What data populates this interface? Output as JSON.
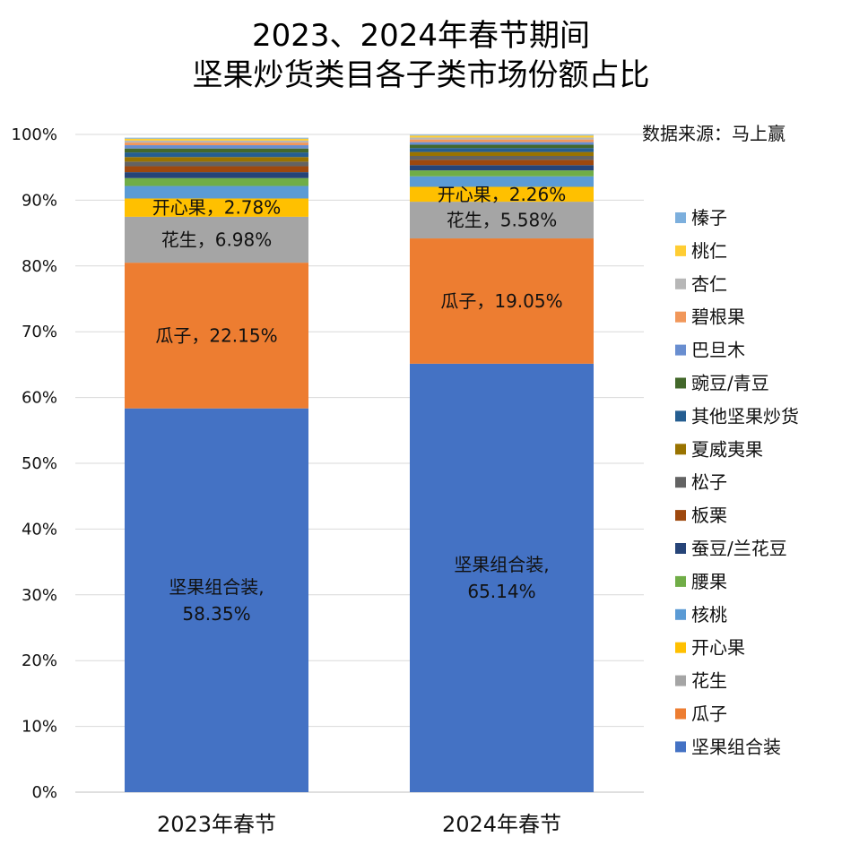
{
  "title_line1": "2023、2024年春节期间",
  "title_line2": "坚果炒货类目各子类市场份额占比",
  "source": "数据来源：马上赢",
  "chart_data": {
    "type": "bar",
    "stacked": true,
    "percent_stacked": true,
    "title": "2023、2024年春节期间 坚果炒货类目各子类市场份额占比",
    "categories": [
      "2023年春节",
      "2024年春节"
    ],
    "ylim": [
      0,
      100
    ],
    "yticks": [
      "0%",
      "10%",
      "20%",
      "30%",
      "40%",
      "50%",
      "60%",
      "70%",
      "80%",
      "90%",
      "100%"
    ],
    "grid": true,
    "legend_position": "right",
    "series": [
      {
        "name": "坚果组合装",
        "color": "#4472C4",
        "values": [
          58.35,
          65.14
        ],
        "labels": [
          "坚果组合装,\n58.35%",
          "坚果组合装,\n65.14%"
        ]
      },
      {
        "name": "瓜子",
        "color": "#ED7D31",
        "values": [
          22.15,
          19.05
        ],
        "labels": [
          "瓜子，22.15%",
          "瓜子，19.05%"
        ]
      },
      {
        "name": "花生",
        "color": "#A5A5A5",
        "values": [
          6.98,
          5.58
        ],
        "labels": [
          "花生，6.98%",
          "花生，5.58%"
        ]
      },
      {
        "name": "开心果",
        "color": "#FFC000",
        "values": [
          2.78,
          2.26
        ],
        "labels": [
          "开心果，2.78%",
          "开心果，2.26%"
        ]
      },
      {
        "name": "核桃",
        "color": "#5B9BD5",
        "values": [
          1.9,
          1.6
        ],
        "labels": [
          "",
          ""
        ]
      },
      {
        "name": "腰果",
        "color": "#70AD47",
        "values": [
          1.2,
          0.9
        ],
        "labels": [
          "",
          ""
        ]
      },
      {
        "name": "蚕豆/兰花豆",
        "color": "#264478",
        "values": [
          0.9,
          0.8
        ],
        "labels": [
          "",
          ""
        ]
      },
      {
        "name": "板栗",
        "color": "#9E480E",
        "values": [
          0.9,
          0.8
        ],
        "labels": [
          "",
          ""
        ]
      },
      {
        "name": "松子",
        "color": "#636363",
        "values": [
          0.7,
          0.6
        ],
        "labels": [
          "",
          ""
        ]
      },
      {
        "name": "夏威夷果",
        "color": "#997300",
        "values": [
          0.7,
          0.6
        ],
        "labels": [
          "",
          ""
        ]
      },
      {
        "name": "其他坚果炒货",
        "color": "#255E91",
        "values": [
          0.7,
          0.6
        ],
        "labels": [
          "",
          ""
        ]
      },
      {
        "name": "豌豆/青豆",
        "color": "#43682B",
        "values": [
          0.6,
          0.5
        ],
        "labels": [
          "",
          ""
        ]
      },
      {
        "name": "巴旦木",
        "color": "#698ED0",
        "values": [
          0.5,
          0.4
        ],
        "labels": [
          "",
          ""
        ]
      },
      {
        "name": "碧根果",
        "color": "#F1975A",
        "values": [
          0.4,
          0.4
        ],
        "labels": [
          "",
          ""
        ]
      },
      {
        "name": "杏仁",
        "color": "#B7B7B7",
        "values": [
          0.3,
          0.3
        ],
        "labels": [
          "",
          ""
        ]
      },
      {
        "name": "桃仁",
        "color": "#FFCD33",
        "values": [
          0.3,
          0.3
        ],
        "labels": [
          "",
          ""
        ]
      },
      {
        "name": "榛子",
        "color": "#7CAFDD",
        "values": [
          0.14,
          0.12
        ],
        "labels": [
          "",
          ""
        ]
      }
    ]
  }
}
